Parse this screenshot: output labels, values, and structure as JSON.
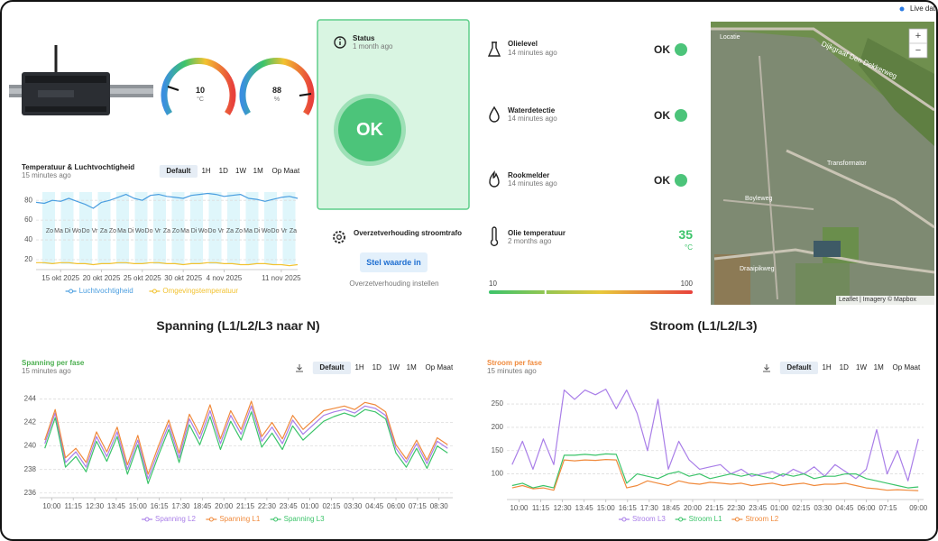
{
  "header": {
    "live": "Live data"
  },
  "device": {
    "gauges": [
      {
        "value": 10,
        "unit": "°C"
      },
      {
        "value": 88,
        "unit": "%"
      }
    ]
  },
  "status": {
    "title": "Status",
    "time": "1 month ago",
    "state": "OK"
  },
  "transformer": {
    "title": "Overzetverhouding stroomtrafo",
    "button": "Stel waarde in",
    "caption": "Overzetverhouding instellen"
  },
  "sensors": [
    {
      "name": "Olielevel",
      "time": "14 minutes ago",
      "state": "OK"
    },
    {
      "name": "Waterdetectie",
      "time": "14 minutes ago",
      "state": "OK"
    },
    {
      "name": "Rookmelder",
      "time": "14 minutes ago",
      "state": "OK"
    }
  ],
  "oil_temperature": {
    "name": "Olie temperatuur",
    "time": "2 months ago",
    "value": 35,
    "unit": "°C",
    "min": 10,
    "max": 100
  },
  "map": {
    "title": "Locatie",
    "zoom_in": "+",
    "zoom_out": "−",
    "labels": [
      "Dijkgraaf Den Dekkerweg",
      "Transformator",
      "Boyleweg",
      "Draaipikweg"
    ],
    "attribution": "Leaflet | Imagery © Mapbox"
  },
  "sections": [
    "Spanning (L1/L2/L3 naar N)",
    "Stroom (L1/L2/L3)"
  ],
  "chart_data": [
    {
      "type": "line",
      "title": "Temperatuur & Luchtvochtigheid",
      "subtitle": "15 minutes ago",
      "range_buttons": [
        "Default",
        "1H",
        "1D",
        "1W",
        "1M",
        "Op Maat"
      ],
      "day_labels": [
        "Zo",
        "Ma",
        "Di",
        "Wo",
        "Do",
        "Vr",
        "Za",
        "Zo",
        "Ma",
        "Di",
        "Wo",
        "Do",
        "Vr",
        "Za",
        "Zo",
        "Ma",
        "Di",
        "Wo",
        "Do",
        "Vr",
        "Za",
        "Zo",
        "Ma",
        "Di",
        "Wo",
        "Do",
        "Vr",
        "Za"
      ],
      "x": [
        12,
        13,
        14,
        15,
        16,
        17,
        18,
        19,
        20,
        21,
        22,
        23,
        24,
        25,
        26,
        27,
        28,
        29,
        30,
        31,
        32,
        33,
        34,
        35,
        36,
        37,
        38,
        39,
        40,
        41,
        42,
        43,
        44
      ],
      "xlim": [
        12,
        44
      ],
      "xticks": [
        {
          "value": 15,
          "label": "15 okt 2025"
        },
        {
          "value": 20,
          "label": "20 okt 2025"
        },
        {
          "value": 25,
          "label": "25 okt 2025"
        },
        {
          "value": 30,
          "label": "30 okt 2025"
        },
        {
          "value": 35,
          "label": "4 nov 2025"
        },
        {
          "value": 42,
          "label": "11 nov 2025"
        }
      ],
      "ylim": [
        10,
        92
      ],
      "yticks": [
        20,
        40,
        60,
        80
      ],
      "grid": true,
      "series": [
        {
          "name": "Luchtvochtigheid",
          "color": "#4a9ee0",
          "values": [
            78,
            77,
            80,
            79,
            82,
            79,
            76,
            72,
            78,
            80,
            83,
            86,
            82,
            80,
            85,
            86,
            84,
            83,
            82,
            85,
            86,
            87,
            86,
            84,
            85,
            86,
            82,
            81,
            79,
            81,
            83,
            84,
            82
          ]
        },
        {
          "name": "Omgevingstemperatuur",
          "color": "#f2c230",
          "values": [
            17,
            17,
            16,
            17,
            17,
            16,
            16,
            15,
            16,
            16,
            17,
            17,
            16,
            16,
            17,
            17,
            16,
            16,
            15,
            16,
            16,
            17,
            17,
            16,
            16,
            15,
            15,
            16,
            16,
            15,
            15,
            14,
            15
          ]
        }
      ]
    },
    {
      "type": "line",
      "title": "Spanning per fase",
      "subtitle": "15 minutes ago",
      "title_color": "#4caf50",
      "range_buttons": [
        "Default",
        "1H",
        "1D",
        "1W",
        "1M",
        "Op Maat"
      ],
      "x": [
        9.6,
        10.2,
        10.8,
        11.4,
        12,
        12.6,
        13.2,
        13.8,
        14.4,
        15,
        15.6,
        16.2,
        16.8,
        17.4,
        18,
        18.6,
        19.2,
        19.8,
        20.4,
        21,
        21.6,
        22.2,
        22.8,
        23.4,
        24,
        24.6,
        25.2,
        25.8,
        26.4,
        27,
        27.6,
        28.2,
        28.8,
        29.4,
        30,
        30.6,
        31.2,
        31.8,
        32.4,
        33
      ],
      "xlim": [
        9.3,
        33.3
      ],
      "xticks": [
        {
          "value": 10,
          "label": "10:00"
        },
        {
          "value": 11.25,
          "label": "11:15"
        },
        {
          "value": 12.5,
          "label": "12:30"
        },
        {
          "value": 13.75,
          "label": "13:45"
        },
        {
          "value": 15,
          "label": "15:00"
        },
        {
          "value": 16.25,
          "label": "16:15"
        },
        {
          "value": 17.5,
          "label": "17:30"
        },
        {
          "value": 18.75,
          "label": "18:45"
        },
        {
          "value": 20,
          "label": "20:00"
        },
        {
          "value": 21.25,
          "label": "21:15"
        },
        {
          "value": 22.5,
          "label": "22:30"
        },
        {
          "value": 23.75,
          "label": "23:45"
        },
        {
          "value": 25,
          "label": "01:00"
        },
        {
          "value": 26.25,
          "label": "02:15"
        },
        {
          "value": 27.5,
          "label": "03:30"
        },
        {
          "value": 28.75,
          "label": "04:45"
        },
        {
          "value": 30,
          "label": "06:00"
        },
        {
          "value": 31.25,
          "label": "07:15"
        },
        {
          "value": 32.5,
          "label": "08:30"
        }
      ],
      "ylim": [
        235.6,
        244.8
      ],
      "yticks": [
        236,
        238,
        240,
        242,
        244
      ],
      "grid": true,
      "series": [
        {
          "name": "Spanning L2",
          "color": "#a97ee8",
          "values": [
            240.2,
            242.8,
            238.6,
            239.5,
            238.2,
            240.8,
            239.1,
            241.2,
            238.0,
            240.5,
            237.2,
            239.6,
            241.8,
            239.0,
            242.3,
            240.6,
            243.0,
            240.2,
            242.6,
            241.0,
            243.4,
            240.4,
            241.6,
            240.2,
            242.2,
            241.0,
            241.8,
            242.6,
            242.9,
            243.1,
            242.8,
            243.4,
            243.2,
            242.6,
            239.8,
            238.6,
            240.2,
            238.5,
            240.4,
            239.8
          ]
        },
        {
          "name": "Spanning L1",
          "color": "#f08a3c",
          "values": [
            240.5,
            243.1,
            239.0,
            239.8,
            238.6,
            241.2,
            239.5,
            241.6,
            238.4,
            240.9,
            237.6,
            240.0,
            242.2,
            239.4,
            242.7,
            241.0,
            243.5,
            240.6,
            243.0,
            241.4,
            243.8,
            240.8,
            242.0,
            240.6,
            242.6,
            241.4,
            242.2,
            243.0,
            243.2,
            243.4,
            243.1,
            243.7,
            243.5,
            242.9,
            240.1,
            238.9,
            240.5,
            238.8,
            240.7,
            240.1
          ]
        },
        {
          "name": "Spanning L3",
          "color": "#3cc46a",
          "values": [
            239.8,
            242.4,
            238.2,
            239.1,
            237.8,
            240.4,
            238.7,
            240.8,
            237.6,
            240.1,
            236.8,
            239.2,
            241.4,
            238.6,
            241.8,
            240.1,
            242.5,
            239.7,
            242.1,
            240.5,
            242.9,
            239.9,
            241.1,
            239.7,
            241.7,
            240.5,
            241.3,
            242.1,
            242.5,
            242.8,
            242.5,
            243.1,
            242.9,
            242.3,
            239.4,
            238.2,
            239.8,
            238.1,
            240.0,
            239.4
          ]
        }
      ]
    },
    {
      "type": "line",
      "title": "Stroom per fase",
      "subtitle": "15 minutes ago",
      "title_color": "#f08a3c",
      "range_buttons": [
        "Default",
        "1H",
        "1D",
        "1W",
        "1M",
        "Op Maat"
      ],
      "x": [
        9.6,
        10.2,
        10.8,
        11.4,
        12,
        12.6,
        13.2,
        13.8,
        14.4,
        15,
        15.6,
        16.2,
        16.8,
        17.4,
        18,
        18.6,
        19.2,
        19.8,
        20.4,
        21,
        21.6,
        22.2,
        22.8,
        23.4,
        24,
        24.6,
        25.2,
        25.8,
        26.4,
        27,
        27.6,
        28.2,
        28.8,
        29.4,
        30,
        30.6,
        31.2,
        31.8,
        32.4,
        33
      ],
      "xlim": [
        9.3,
        33.3
      ],
      "xticks": [
        {
          "value": 10,
          "label": "10:00"
        },
        {
          "value": 11.25,
          "label": "11:15"
        },
        {
          "value": 12.5,
          "label": "12:30"
        },
        {
          "value": 13.75,
          "label": "13:45"
        },
        {
          "value": 15,
          "label": "15:00"
        },
        {
          "value": 16.25,
          "label": "16:15"
        },
        {
          "value": 17.5,
          "label": "17:30"
        },
        {
          "value": 18.75,
          "label": "18:45"
        },
        {
          "value": 20,
          "label": "20:00"
        },
        {
          "value": 21.25,
          "label": "21:15"
        },
        {
          "value": 22.5,
          "label": "22:30"
        },
        {
          "value": 23.75,
          "label": "23:45"
        },
        {
          "value": 25,
          "label": "01:00"
        },
        {
          "value": 26.25,
          "label": "02:15"
        },
        {
          "value": 27.5,
          "label": "03:30"
        },
        {
          "value": 28.75,
          "label": "04:45"
        },
        {
          "value": 30,
          "label": "06:00"
        },
        {
          "value": 31.25,
          "label": "07:15"
        },
        {
          "value": 33,
          "label": "09:00"
        }
      ],
      "ylim": [
        45,
        285
      ],
      "yticks": [
        100,
        150,
        200,
        250
      ],
      "grid": true,
      "series": [
        {
          "name": "Stroom L3",
          "color": "#a97ee8",
          "values": [
            120,
            170,
            110,
            175,
            120,
            280,
            260,
            280,
            270,
            282,
            240,
            280,
            230,
            150,
            260,
            110,
            170,
            130,
            110,
            115,
            120,
            100,
            110,
            95,
            100,
            105,
            95,
            110,
            100,
            115,
            95,
            120,
            105,
            90,
            110,
            195,
            100,
            150,
            85,
            175
          ]
        },
        {
          "name": "Stroom L1",
          "color": "#3cc46a",
          "values": [
            75,
            80,
            70,
            75,
            70,
            140,
            140,
            142,
            140,
            143,
            142,
            80,
            100,
            95,
            90,
            100,
            105,
            95,
            100,
            90,
            95,
            100,
            95,
            100,
            95,
            90,
            100,
            95,
            100,
            90,
            95,
            95,
            100,
            100,
            90,
            85,
            80,
            75,
            70,
            72
          ]
        },
        {
          "name": "Stroom L2",
          "color": "#f08a3c",
          "values": [
            70,
            75,
            68,
            70,
            65,
            130,
            128,
            130,
            129,
            131,
            130,
            70,
            75,
            85,
            80,
            75,
            85,
            80,
            78,
            82,
            80,
            78,
            80,
            75,
            78,
            80,
            75,
            78,
            80,
            75,
            78,
            78,
            80,
            75,
            70,
            68,
            65,
            66,
            65,
            64
          ]
        }
      ]
    }
  ]
}
